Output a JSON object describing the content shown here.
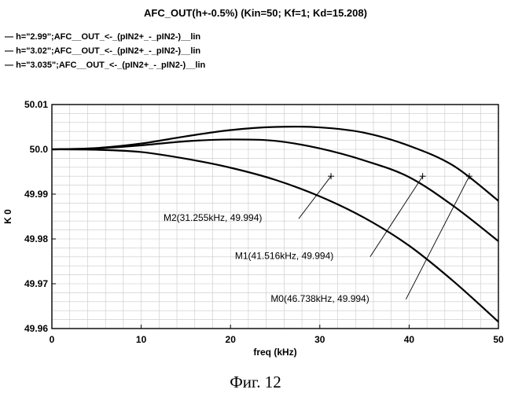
{
  "chart_data": {
    "type": "line",
    "title": "AFC_OUT(h+-0.5%) (Kin=50; Kf=1; Kd=15.208)",
    "xlabel": "freq (kHz)",
    "ylabel": "K 0",
    "xlim": [
      0,
      50
    ],
    "ylim": [
      49.96,
      50.01
    ],
    "x_ticks": [
      "0",
      "10",
      "20",
      "30",
      "40",
      "50"
    ],
    "y_ticks": [
      "50.01",
      "50.0",
      "49.99",
      "49.98",
      "49.97",
      "49.96"
    ],
    "grid": true,
    "legend_position": "top-left",
    "legend": [
      "h=\"2.99\";AFC__OUT_<-_(pIN2+_-_pIN2-)__lin",
      "h=\"3.02\";AFC__OUT_<-_(pIN2+_-_pIN2-)__lin",
      "h=\"3.035\";AFC__OUT_<-_(pIN2+_-_pIN2-)__lin"
    ],
    "x": [
      0,
      5,
      10,
      15,
      20,
      25,
      30,
      35,
      40,
      45,
      50
    ],
    "series": [
      {
        "name": "h=\"2.99\"",
        "values": [
          50.0,
          49.9999,
          49.9994,
          49.9979,
          49.9959,
          49.9932,
          49.9895,
          49.9847,
          49.9785,
          49.9705,
          49.9615
        ]
      },
      {
        "name": "h=\"3.02\"",
        "values": [
          50.0,
          50.0002,
          50.0009,
          50.0018,
          50.0022,
          50.0019,
          50.0002,
          49.9975,
          49.9938,
          49.9873,
          49.9795
        ]
      },
      {
        "name": "h=\"3.035\"",
        "values": [
          50.0,
          50.0003,
          50.0013,
          50.0029,
          50.0043,
          50.005,
          50.0049,
          50.0037,
          50.0008,
          49.9963,
          49.9885
        ]
      }
    ],
    "markers": [
      {
        "label": "M2(31.255kHz, 49.994)",
        "x": 31.255,
        "y": 49.994,
        "label_x": 12.5,
        "label_y": 49.984
      },
      {
        "label": "M1(41.516kHz, 49.994)",
        "x": 41.516,
        "y": 49.994,
        "label_x": 20.5,
        "label_y": 49.9755
      },
      {
        "label": "M0(46.738kHz, 49.994)",
        "x": 46.738,
        "y": 49.994,
        "label_x": 24.5,
        "label_y": 49.966
      }
    ]
  },
  "caption": "Фиг. 12"
}
